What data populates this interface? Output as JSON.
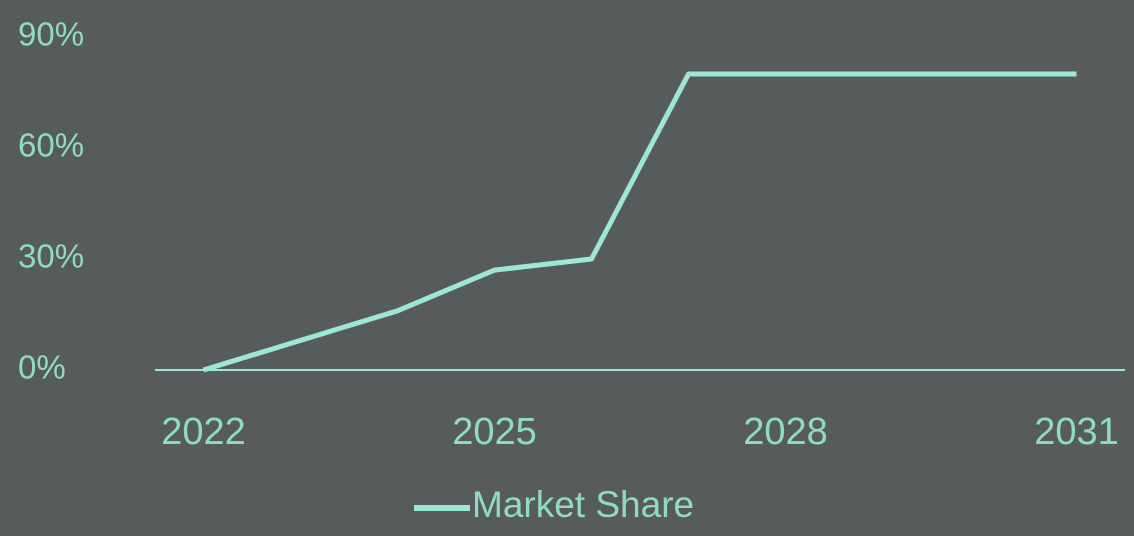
{
  "chart_data": {
    "type": "line",
    "x": [
      2022,
      2024,
      2025,
      2026,
      2027,
      2031
    ],
    "series": [
      {
        "name": "Market Share",
        "color": "#9ce8d3",
        "values": [
          0,
          16,
          27,
          30,
          80,
          80
        ]
      }
    ],
    "xlim": [
      2021.5,
      2031.5
    ],
    "xticks": [
      2022,
      2025,
      2028,
      2031
    ],
    "ylim": [
      0,
      90
    ],
    "yticks": [
      {
        "value": 0,
        "label": "0%"
      },
      {
        "value": 30,
        "label": "30%"
      },
      {
        "value": 60,
        "label": "60%"
      },
      {
        "value": 90,
        "label": "90%"
      }
    ],
    "legend": "bottom"
  }
}
